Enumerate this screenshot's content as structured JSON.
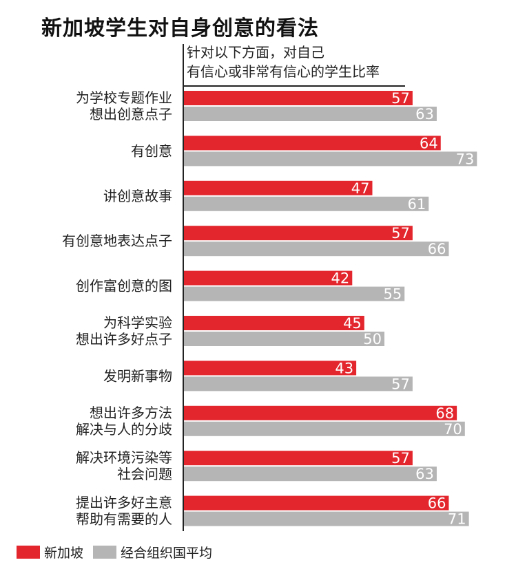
{
  "chart_data": {
    "type": "bar",
    "orientation": "horizontal",
    "title": "新加坡学生对自身创意的看法",
    "subtitle_lines": [
      "针对以下方面，对自己",
      "有信心或非常有信心的学生比率"
    ],
    "categories": [
      [
        "为学校专题作业",
        "想出创意点子"
      ],
      [
        "有创意"
      ],
      [
        "讲创意故事"
      ],
      [
        "有创意地表达点子"
      ],
      [
        "创作富创意的图"
      ],
      [
        "为科学实验",
        "想出许多好点子"
      ],
      [
        "发明新事物"
      ],
      [
        "想出许多方法",
        "解决与人的分歧"
      ],
      [
        "解决环境污染等",
        "社会问题"
      ],
      [
        "提出许多好主意",
        "帮助有需要的人"
      ]
    ],
    "series": [
      {
        "name": "新加坡",
        "color": "#e3262d",
        "values": [
          57,
          64,
          47,
          57,
          42,
          45,
          43,
          68,
          57,
          66
        ]
      },
      {
        "name": "经合组织国平均",
        "color": "#b5b5b5",
        "values": [
          63,
          73,
          61,
          66,
          55,
          50,
          57,
          70,
          63,
          71
        ]
      }
    ],
    "legend_position": "bottom-left",
    "grid": false
  }
}
